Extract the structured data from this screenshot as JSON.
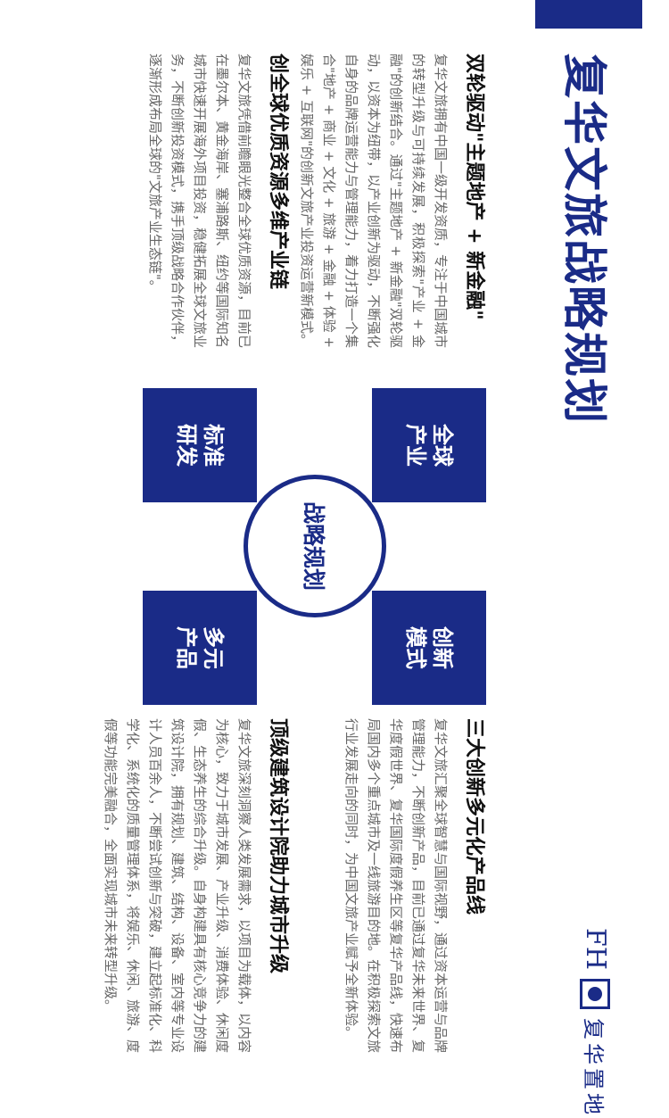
{
  "page": {
    "title": "复华文旅战略规划",
    "logo": {
      "latin": "FH",
      "icon": "fh-logo-icon",
      "cn": "复华置地"
    }
  },
  "sections": {
    "dual_wheel": {
      "heading": "双轮驱动\"主题地产 + 新金融\"",
      "body": "复华文旅拥有中国一级开发资质，专注于中国城市的转型升级与可持续发展，积极探索\"产业 + 金融\"的创新结合。通过\"主题地产 + 新金融\"双轮驱动，以资本为纽带，以产业创新为驱动，不断强化自身的品牌运营能力与管理能力，着力打造一个集合\"地产 + 商业 + 文化 + 旅游 + 金融 + 体验 + 娱乐 + 互联网\"的创新文旅产业投资运营新模式。"
    },
    "global_chain": {
      "heading": "创全球优质资源多维产业链",
      "body": "复华文旅凭借前瞻眼光整合全球优质资源，目前已在墨尔本、黄金海岸、塞浦路斯、纽约等国际知名城市快速开展海外项目投资，稳健拓展全球文旅业务，不断创新投资模式，携手顶级战略合作伙伴，逐渐形成布局全球的\"文旅产业生态链\"。"
    },
    "innovation": {
      "heading": "三大创新多元化产品线",
      "body": "复华文旅汇聚全球智慧与国际视野，通过资本运营与品牌管理能力，不断创新产品，目前已通过复华未来世界、复华度假世界、复华国际度假养生区等复华产品线，快速布局国内多个重点城市及一线旅游目的地。在积极探索文旅行业发展走向的同时，为中国文旅产业赋予全新体验。"
    },
    "architecture": {
      "heading": "顶级建筑设计院助力城市升级",
      "body": "复华文旅深刻洞察人类发展需求，以项目为载体，以内容为核心，致力于城市发展、产业升级、消费体验、休闲度假、生态养生的综合升级。自身构建具有核心竞争力的建筑设计院，拥有规划、建筑、结构、设备、室内等专业设计人员百余人，不断尝试创新与突破，建立起标准化、科学化、系统化的质量管理体系，将娱乐、休闲、旅游、度假等功能完美融合，全面实现城市未来转型升级。"
    }
  },
  "diagram": {
    "center": "战略规划",
    "tiles": [
      "全球产业",
      "创新模式",
      "标准研发",
      "多元产品"
    ]
  },
  "colors": {
    "brand_blue": "#1a2b87",
    "text": "#111111",
    "body_text": "#666666"
  }
}
